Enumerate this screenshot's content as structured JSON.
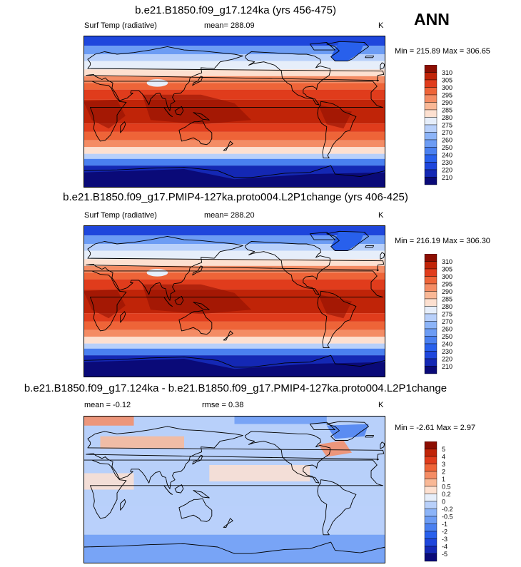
{
  "season": "ANN",
  "panels": [
    {
      "title": "b.e21.B1850.f09_g17.124ka (yrs 456-475)",
      "variable": "Surf Temp (radiative)",
      "stat": "mean= 288.09",
      "units": "K",
      "minmax": "Min = 215.89 Max = 306.65"
    },
    {
      "title": "b.e21.B1850.f09_g17.PMIP4-127ka.proto004.L2P1change (yrs 406-425)",
      "variable": "Surf Temp (radiative)",
      "stat": "mean= 288.20",
      "units": "K",
      "minmax": "Min = 216.19 Max = 306.30"
    },
    {
      "title": "b.e21.B1850.f09_g17.124ka - b.e21.B1850.f09_g17.PMIP4-127ka.proto004.L2P1change",
      "stat": "mean = -0.12",
      "stat2": "rmse = 0.38",
      "units": "K",
      "minmax": "Min = -2.61 Max = 2.97"
    }
  ],
  "chart_data": [
    {
      "type": "heatmap",
      "title": "b.e21.B1850.f09_g17.124ka (yrs 456-475)",
      "variable": "Surf Temp (radiative)",
      "units": "K",
      "mean": 288.09,
      "min": 215.89,
      "max": 306.65,
      "colorbar_levels": [
        210,
        220,
        230,
        240,
        250,
        260,
        270,
        275,
        280,
        285,
        290,
        295,
        300,
        305,
        310
      ],
      "colorbar_labels": [
        "310",
        "305",
        "300",
        "295",
        "290",
        "285",
        "280",
        "275",
        "270",
        "260",
        "250",
        "240",
        "230",
        "220",
        "210"
      ],
      "colors": [
        "#0a0a78",
        "#1428b4",
        "#1e46dc",
        "#2860ec",
        "#4a80f0",
        "#6c9cf4",
        "#8cb4f8",
        "#b8d0fa",
        "#e6eefa",
        "#fde0d0",
        "#f9b896",
        "#f48c64",
        "#ee6438",
        "#e03c1c",
        "#c02408",
        "#8c0e02"
      ]
    },
    {
      "type": "heatmap",
      "title": "b.e21.B1850.f09_g17.PMIP4-127ka.proto004.L2P1change (yrs 406-425)",
      "variable": "Surf Temp (radiative)",
      "units": "K",
      "mean": 288.2,
      "min": 216.19,
      "max": 306.3,
      "colorbar_levels": [
        210,
        220,
        230,
        240,
        250,
        260,
        270,
        275,
        280,
        285,
        290,
        295,
        300,
        305,
        310
      ],
      "colorbar_labels": [
        "310",
        "305",
        "300",
        "295",
        "290",
        "285",
        "280",
        "275",
        "270",
        "260",
        "250",
        "240",
        "230",
        "220",
        "210"
      ],
      "colors": [
        "#0a0a78",
        "#1428b4",
        "#1e46dc",
        "#2860ec",
        "#4a80f0",
        "#6c9cf4",
        "#8cb4f8",
        "#b8d0fa",
        "#e6eefa",
        "#fde0d0",
        "#f9b896",
        "#f48c64",
        "#ee6438",
        "#e03c1c",
        "#c02408",
        "#8c0e02"
      ]
    },
    {
      "type": "heatmap",
      "title": "b.e21.B1850.f09_g17.124ka - b.e21.B1850.f09_g17.PMIP4-127ka.proto004.L2P1change",
      "units": "K",
      "mean": -0.12,
      "rmse": 0.38,
      "min": -2.61,
      "max": 2.97,
      "colorbar_levels": [
        -5,
        -4,
        -3,
        -2,
        -1,
        -0.5,
        -0.2,
        0,
        0.2,
        0.5,
        1,
        2,
        3,
        4,
        5
      ],
      "colorbar_labels": [
        "5",
        "4",
        "3",
        "2",
        "1",
        "0.5",
        "0.2",
        "0",
        "-0.2",
        "-0.5",
        "-1",
        "-2",
        "-3",
        "-4",
        "-5"
      ],
      "colors": [
        "#0a0a78",
        "#1428b4",
        "#1e46dc",
        "#2860ec",
        "#4a80f0",
        "#6c9cf4",
        "#8cb4f8",
        "#b8d0fa",
        "#e6eefa",
        "#fde0d0",
        "#f9b896",
        "#f48c64",
        "#ee6438",
        "#e03c1c",
        "#c02408",
        "#8c0e02"
      ]
    }
  ]
}
